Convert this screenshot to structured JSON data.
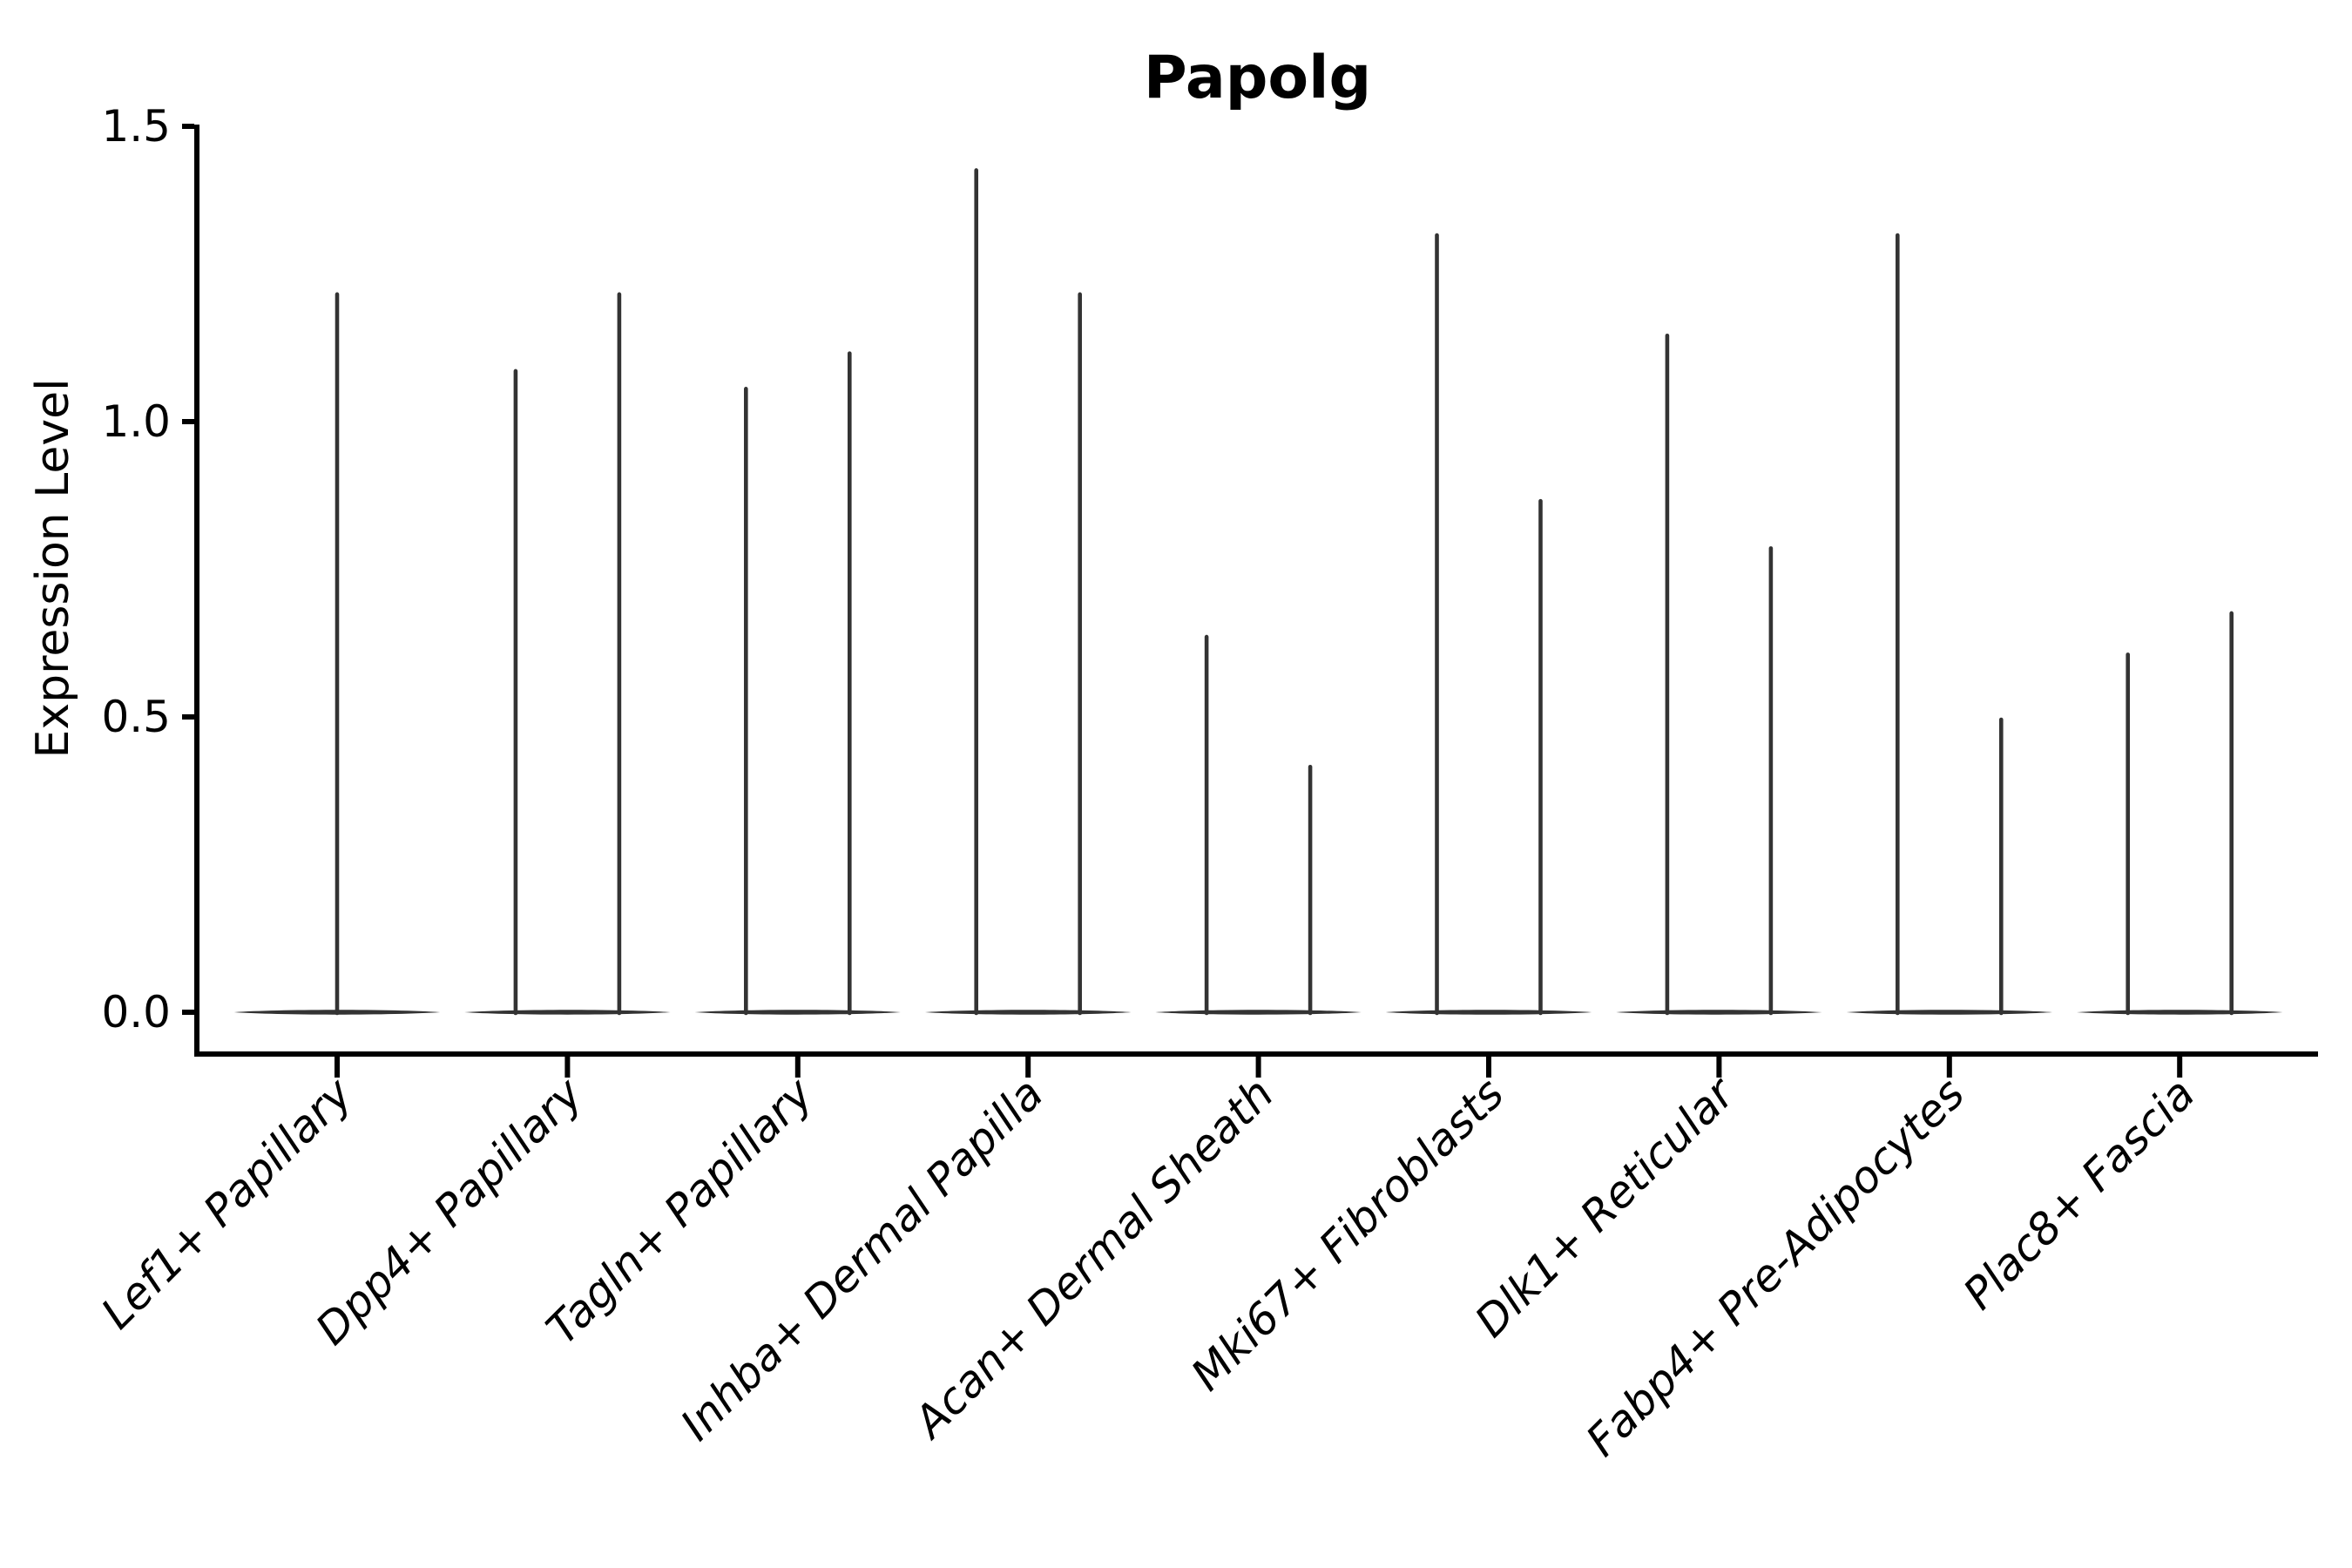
{
  "chart_data": {
    "type": "violin",
    "title": "Papolg",
    "xlabel": "",
    "ylabel": "Expression Level",
    "ylim": [
      0,
      1.5
    ],
    "yticks": [
      0.0,
      0.5,
      1.0,
      1.5
    ],
    "ytick_labels": [
      "0.0",
      "0.5",
      "1.0",
      "1.5"
    ],
    "grid": false,
    "legend": "none",
    "spines": [
      "left",
      "bottom"
    ],
    "categories": [
      "Lef1+ Papillary",
      "Dpp4+ Papillary",
      "Tagln+ Papillary",
      "Inhba+ Dermal Papilla",
      "Acan+ Dermal Sheath",
      "Mki67+ Fibroblasts",
      "Dlk1+ Reticular",
      "Fabp4+ Pre-Adipocytes",
      "Plac8+ Fascia"
    ],
    "series": [
      {
        "category": "Lef1+ Papillary",
        "spikes": [
          {
            "offset": 0.0,
            "max": 1.22
          }
        ]
      },
      {
        "category": "Dpp4+ Papillary",
        "spikes": [
          {
            "offset": -0.225,
            "max": 1.09
          },
          {
            "offset": 0.225,
            "max": 1.22
          }
        ]
      },
      {
        "category": "Tagln+ Papillary",
        "spikes": [
          {
            "offset": -0.225,
            "max": 1.06
          },
          {
            "offset": 0.225,
            "max": 1.12
          }
        ]
      },
      {
        "category": "Inhba+ Dermal Papilla",
        "spikes": [
          {
            "offset": -0.225,
            "max": 1.43
          },
          {
            "offset": 0.225,
            "max": 1.22
          }
        ]
      },
      {
        "category": "Acan+ Dermal Sheath",
        "spikes": [
          {
            "offset": -0.225,
            "max": 0.64
          },
          {
            "offset": 0.225,
            "max": 0.42
          }
        ]
      },
      {
        "category": "Mki67+ Fibroblasts",
        "spikes": [
          {
            "offset": -0.225,
            "max": 1.32
          },
          {
            "offset": 0.225,
            "max": 0.87
          }
        ]
      },
      {
        "category": "Dlk1+ Reticular",
        "spikes": [
          {
            "offset": -0.225,
            "max": 1.15
          },
          {
            "offset": 0.225,
            "max": 0.79
          }
        ]
      },
      {
        "category": "Fabp4+ Pre-Adipocytes",
        "spikes": [
          {
            "offset": -0.225,
            "max": 1.32
          },
          {
            "offset": 0.225,
            "max": 0.5
          }
        ]
      },
      {
        "category": "Plac8+ Fascia",
        "spikes": [
          {
            "offset": -0.225,
            "max": 0.61
          },
          {
            "offset": 0.225,
            "max": 0.68
          }
        ]
      }
    ],
    "base_half_width": 0.447,
    "violin_color": "#333333",
    "axis_color": "#000000",
    "text_color": "#000000",
    "background": "#ffffff"
  }
}
